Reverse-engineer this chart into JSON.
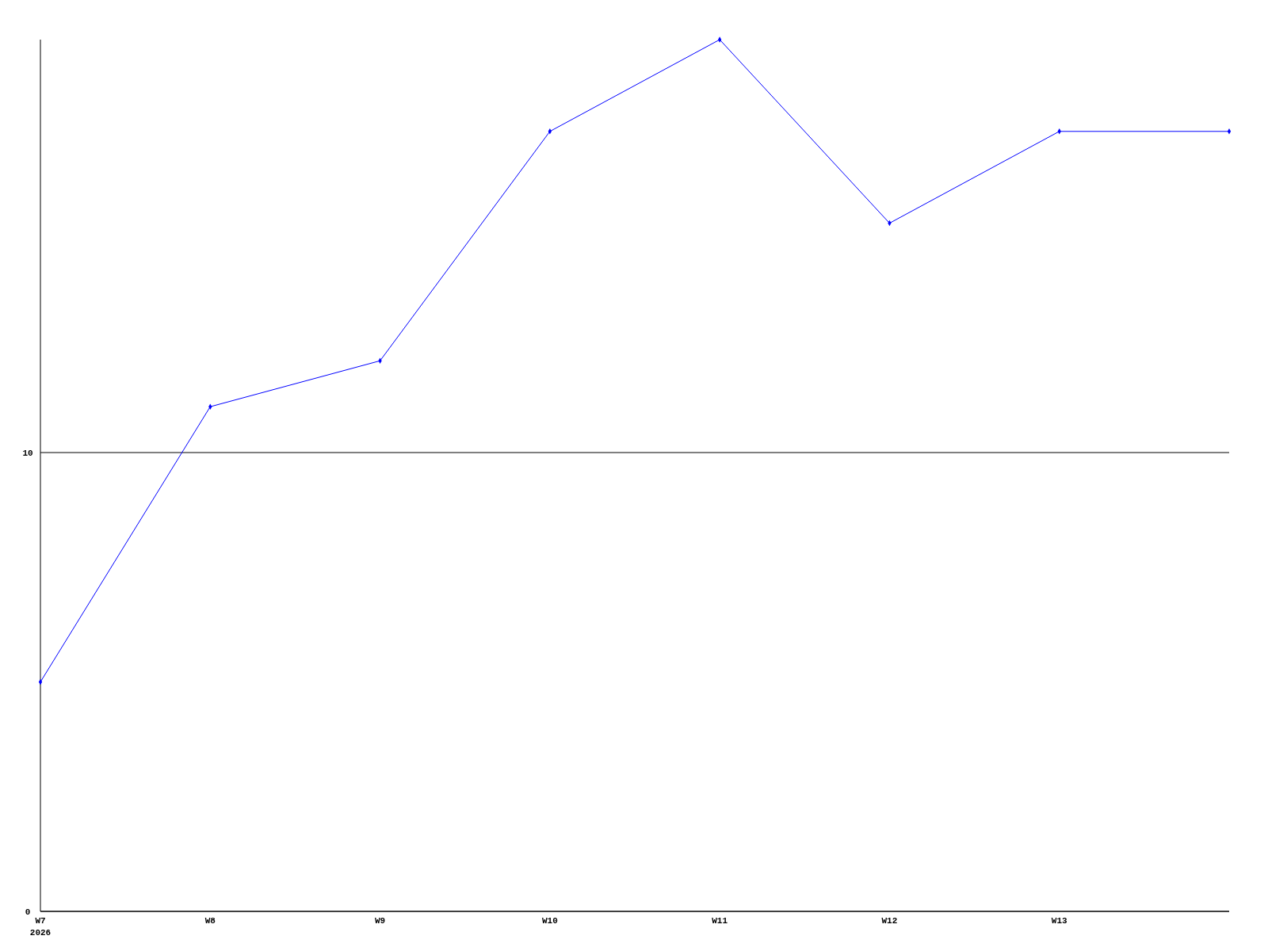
{
  "chart_data": {
    "type": "line",
    "categories": [
      "W7\n2026",
      "W8",
      "W9",
      "W10",
      "W11",
      "W12",
      "W13",
      null
    ],
    "series": [
      {
        "color": "#0000ff",
        "values": [
          5,
          11,
          12,
          17,
          19,
          15,
          17,
          17
        ]
      }
    ],
    "ylim": [
      0,
      19
    ],
    "yticks": [
      0,
      10
    ],
    "grid": "y",
    "marker": "diamond"
  }
}
